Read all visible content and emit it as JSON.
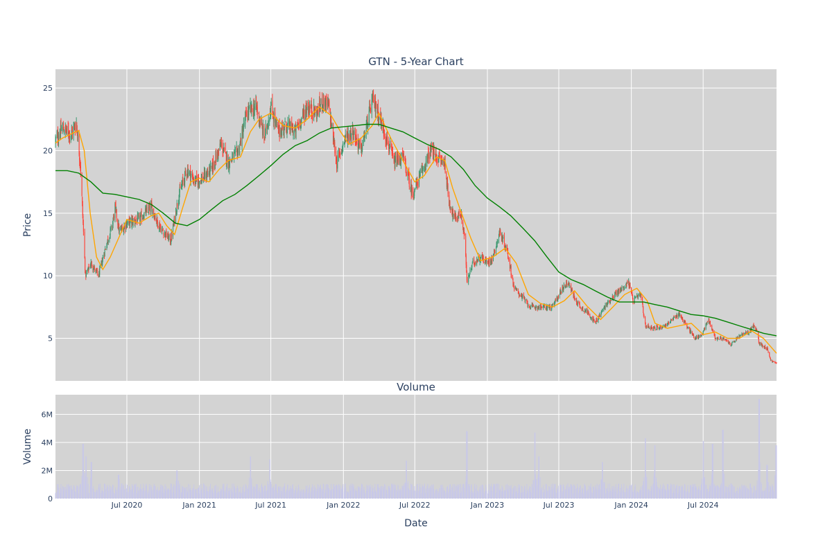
{
  "chart_data": [
    {
      "type": "candlestick",
      "title": "GTN - 5-Year Chart",
      "ylabel": "Price",
      "ylim": [
        1.6,
        26.5
      ],
      "yticks": [
        5,
        10,
        15,
        20,
        25
      ],
      "x_range": [
        "2020-01-02",
        "2025-01-03"
      ],
      "xticks": [
        "2020-07-01",
        "2021-01-01",
        "2021-07-01",
        "2022-01-01",
        "2022-07-01",
        "2023-01-01",
        "2023-07-01",
        "2024-01-01",
        "2024-07-01"
      ],
      "xtick_labels": [
        "Jul 2020",
        "Jan 2021",
        "Jul 2021",
        "Jan 2022",
        "Jul 2022",
        "Jan 2023",
        "Jul 2023",
        "Jan 2024",
        "Jul 2024"
      ],
      "grid": true,
      "colors": {
        "background": "#d3d3d3",
        "increasing": "#3d9970",
        "decreasing": "#ff4136",
        "ma_short": "#ffa500",
        "ma_long": "#008000"
      },
      "close_anchors": [
        [
          "2020-01-02",
          20.8
        ],
        [
          "2020-01-20",
          21.8
        ],
        [
          "2020-02-10",
          21.3
        ],
        [
          "2020-02-24",
          22.2
        ],
        [
          "2020-03-05",
          19.0
        ],
        [
          "2020-03-18",
          10.0
        ],
        [
          "2020-04-01",
          11.0
        ],
        [
          "2020-04-20",
          10.0
        ],
        [
          "2020-05-10",
          12.5
        ],
        [
          "2020-05-25",
          14.0
        ],
        [
          "2020-06-01",
          15.5
        ],
        [
          "2020-06-12",
          13.5
        ],
        [
          "2020-07-01",
          14.2
        ],
        [
          "2020-08-01",
          14.5
        ],
        [
          "2020-09-01",
          15.5
        ],
        [
          "2020-09-20",
          14.0
        ],
        [
          "2020-10-20",
          12.8
        ],
        [
          "2020-11-10",
          16.5
        ],
        [
          "2020-12-01",
          18.5
        ],
        [
          "2020-12-20",
          17.5
        ],
        [
          "2021-01-10",
          17.8
        ],
        [
          "2021-02-01",
          18.5
        ],
        [
          "2021-02-25",
          20.5
        ],
        [
          "2021-03-15",
          19.0
        ],
        [
          "2021-04-10",
          20.0
        ],
        [
          "2021-05-01",
          23.0
        ],
        [
          "2021-05-25",
          23.5
        ],
        [
          "2021-06-15",
          21.0
        ],
        [
          "2021-07-01",
          23.5
        ],
        [
          "2021-07-20",
          21.5
        ],
        [
          "2021-08-10",
          22.0
        ],
        [
          "2021-09-01",
          21.5
        ],
        [
          "2021-10-01",
          23.5
        ],
        [
          "2021-10-25",
          23.0
        ],
        [
          "2021-11-10",
          24.0
        ],
        [
          "2021-11-25",
          23.5
        ],
        [
          "2021-12-15",
          19.0
        ],
        [
          "2022-01-05",
          21.0
        ],
        [
          "2022-01-25",
          21.5
        ],
        [
          "2022-02-15",
          20.0
        ],
        [
          "2022-03-01",
          22.0
        ],
        [
          "2022-03-15",
          24.0
        ],
        [
          "2022-03-25",
          23.5
        ],
        [
          "2022-04-10",
          22.0
        ],
        [
          "2022-05-10",
          19.0
        ],
        [
          "2022-06-01",
          19.5
        ],
        [
          "2022-06-25",
          16.5
        ],
        [
          "2022-07-15",
          18.0
        ],
        [
          "2022-08-10",
          20.0
        ],
        [
          "2022-08-25",
          19.5
        ],
        [
          "2022-09-15",
          19.0
        ],
        [
          "2022-09-25",
          16.0
        ],
        [
          "2022-10-10",
          14.5
        ],
        [
          "2022-10-25",
          15.0
        ],
        [
          "2022-11-05",
          13.0
        ],
        [
          "2022-11-10",
          9.5
        ],
        [
          "2022-11-25",
          11.0
        ],
        [
          "2022-12-15",
          11.5
        ],
        [
          "2023-01-01",
          11.0
        ],
        [
          "2023-01-15",
          11.5
        ],
        [
          "2023-02-01",
          13.5
        ],
        [
          "2023-02-20",
          12.0
        ],
        [
          "2023-03-10",
          9.0
        ],
        [
          "2023-03-25",
          8.5
        ],
        [
          "2023-04-20",
          7.5
        ],
        [
          "2023-05-15",
          7.5
        ],
        [
          "2023-06-15",
          7.5
        ],
        [
          "2023-07-10",
          9.0
        ],
        [
          "2023-07-25",
          9.5
        ],
        [
          "2023-08-10",
          8.2
        ],
        [
          "2023-08-25",
          7.5
        ],
        [
          "2023-09-15",
          7.0
        ],
        [
          "2023-10-01",
          6.2
        ],
        [
          "2023-10-25",
          7.5
        ],
        [
          "2023-11-20",
          8.5
        ],
        [
          "2023-12-10",
          9.0
        ],
        [
          "2023-12-25",
          9.5
        ],
        [
          "2024-01-05",
          8.0
        ],
        [
          "2024-01-25",
          8.5
        ],
        [
          "2024-02-05",
          6.0
        ],
        [
          "2024-03-01",
          5.8
        ],
        [
          "2024-03-25",
          6.0
        ],
        [
          "2024-04-15",
          6.5
        ],
        [
          "2024-05-01",
          7.0
        ],
        [
          "2024-05-20",
          6.0
        ],
        [
          "2024-06-10",
          5.0
        ],
        [
          "2024-06-25",
          5.2
        ],
        [
          "2024-07-15",
          6.5
        ],
        [
          "2024-08-01",
          5.0
        ],
        [
          "2024-08-20",
          5.0
        ],
        [
          "2024-09-10",
          4.5
        ],
        [
          "2024-10-01",
          5.2
        ],
        [
          "2024-10-25",
          5.5
        ],
        [
          "2024-11-05",
          6.0
        ],
        [
          "2024-11-15",
          5.5
        ],
        [
          "2024-11-20",
          4.6
        ],
        [
          "2024-12-10",
          4.2
        ],
        [
          "2024-12-20",
          3.2
        ],
        [
          "2025-01-03",
          3.0
        ]
      ],
      "series": [
        {
          "kind": "ma_short",
          "points": [
            [
              "2020-01-02",
              20.6
            ],
            [
              "2020-01-20",
              21.0
            ],
            [
              "2020-02-15",
              21.4
            ],
            [
              "2020-03-01",
              21.6
            ],
            [
              "2020-03-15",
              20.0
            ],
            [
              "2020-03-30",
              15.0
            ],
            [
              "2020-04-15",
              11.5
            ],
            [
              "2020-05-01",
              10.5
            ],
            [
              "2020-05-20",
              11.5
            ],
            [
              "2020-06-10",
              13.0
            ],
            [
              "2020-07-01",
              14.5
            ],
            [
              "2020-08-01",
              14.2
            ],
            [
              "2020-09-01",
              14.8
            ],
            [
              "2020-09-20",
              15.0
            ],
            [
              "2020-10-10",
              14.0
            ],
            [
              "2020-10-30",
              13.3
            ],
            [
              "2020-11-20",
              15.5
            ],
            [
              "2020-12-10",
              17.5
            ],
            [
              "2021-01-01",
              17.8
            ],
            [
              "2021-01-25",
              17.5
            ],
            [
              "2021-02-20",
              18.5
            ],
            [
              "2021-03-15",
              19.2
            ],
            [
              "2021-04-15",
              19.5
            ],
            [
              "2021-05-10",
              21.5
            ],
            [
              "2021-06-01",
              22.5
            ],
            [
              "2021-07-01",
              23.0
            ],
            [
              "2021-08-01",
              22.0
            ],
            [
              "2021-09-01",
              21.8
            ],
            [
              "2021-10-01",
              22.5
            ],
            [
              "2021-11-01",
              23.5
            ],
            [
              "2021-12-01",
              22.8
            ],
            [
              "2021-12-25",
              21.5
            ],
            [
              "2022-01-15",
              20.5
            ],
            [
              "2022-02-15",
              21.0
            ],
            [
              "2022-03-15",
              22.0
            ],
            [
              "2022-04-01",
              23.0
            ],
            [
              "2022-05-01",
              21.0
            ],
            [
              "2022-06-01",
              19.2
            ],
            [
              "2022-07-01",
              17.5
            ],
            [
              "2022-07-25",
              18.0
            ],
            [
              "2022-08-25",
              19.5
            ],
            [
              "2022-09-15",
              19.2
            ],
            [
              "2022-10-05",
              17.0
            ],
            [
              "2022-10-25",
              15.2
            ],
            [
              "2022-11-20",
              13.0
            ],
            [
              "2022-12-15",
              11.2
            ],
            [
              "2023-01-15",
              11.5
            ],
            [
              "2023-02-15",
              12.2
            ],
            [
              "2023-03-15",
              11.0
            ],
            [
              "2023-04-15",
              8.5
            ],
            [
              "2023-05-15",
              7.8
            ],
            [
              "2023-06-15",
              7.5
            ],
            [
              "2023-07-15",
              8.0
            ],
            [
              "2023-08-10",
              8.8
            ],
            [
              "2023-09-10",
              7.6
            ],
            [
              "2023-10-15",
              6.5
            ],
            [
              "2023-11-15",
              7.5
            ],
            [
              "2023-12-15",
              8.5
            ],
            [
              "2024-01-15",
              9.0
            ],
            [
              "2024-02-10",
              8.0
            ],
            [
              "2024-03-01",
              6.2
            ],
            [
              "2024-04-01",
              5.8
            ],
            [
              "2024-05-01",
              6.0
            ],
            [
              "2024-06-01",
              6.2
            ],
            [
              "2024-07-01",
              5.3
            ],
            [
              "2024-08-01",
              5.5
            ],
            [
              "2024-09-01",
              5.0
            ],
            [
              "2024-10-01",
              5.0
            ],
            [
              "2024-11-01",
              5.6
            ],
            [
              "2024-12-01",
              5.0
            ],
            [
              "2025-01-03",
              3.8
            ]
          ]
        },
        {
          "kind": "ma_long",
          "points": [
            [
              "2020-01-02",
              18.4
            ],
            [
              "2020-02-01",
              18.4
            ],
            [
              "2020-03-01",
              18.2
            ],
            [
              "2020-04-01",
              17.5
            ],
            [
              "2020-05-01",
              16.6
            ],
            [
              "2020-06-01",
              16.5
            ],
            [
              "2020-07-01",
              16.3
            ],
            [
              "2020-08-01",
              16.1
            ],
            [
              "2020-09-01",
              15.7
            ],
            [
              "2020-10-01",
              15.0
            ],
            [
              "2020-11-01",
              14.2
            ],
            [
              "2020-12-01",
              14.0
            ],
            [
              "2021-01-01",
              14.5
            ],
            [
              "2021-02-01",
              15.3
            ],
            [
              "2021-03-01",
              16.0
            ],
            [
              "2021-04-01",
              16.5
            ],
            [
              "2021-05-01",
              17.2
            ],
            [
              "2021-06-01",
              18.0
            ],
            [
              "2021-07-01",
              18.8
            ],
            [
              "2021-08-01",
              19.7
            ],
            [
              "2021-09-01",
              20.4
            ],
            [
              "2021-10-01",
              20.8
            ],
            [
              "2021-11-01",
              21.4
            ],
            [
              "2021-12-01",
              21.8
            ],
            [
              "2022-01-01",
              21.9
            ],
            [
              "2022-02-01",
              22.0
            ],
            [
              "2022-03-01",
              22.1
            ],
            [
              "2022-04-01",
              22.1
            ],
            [
              "2022-05-01",
              21.8
            ],
            [
              "2022-06-01",
              21.5
            ],
            [
              "2022-07-01",
              21.0
            ],
            [
              "2022-08-01",
              20.5
            ],
            [
              "2022-09-01",
              20.1
            ],
            [
              "2022-10-01",
              19.5
            ],
            [
              "2022-11-01",
              18.5
            ],
            [
              "2022-12-01",
              17.2
            ],
            [
              "2023-01-01",
              16.2
            ],
            [
              "2023-02-01",
              15.5
            ],
            [
              "2023-03-01",
              14.8
            ],
            [
              "2023-04-01",
              13.8
            ],
            [
              "2023-05-01",
              12.8
            ],
            [
              "2023-06-01",
              11.5
            ],
            [
              "2023-07-01",
              10.3
            ],
            [
              "2023-08-01",
              9.7
            ],
            [
              "2023-09-01",
              9.3
            ],
            [
              "2023-10-01",
              8.8
            ],
            [
              "2023-11-01",
              8.3
            ],
            [
              "2023-12-01",
              7.9
            ],
            [
              "2024-01-01",
              7.9
            ],
            [
              "2024-02-01",
              7.9
            ],
            [
              "2024-03-01",
              7.7
            ],
            [
              "2024-04-01",
              7.5
            ],
            [
              "2024-05-01",
              7.2
            ],
            [
              "2024-06-01",
              6.9
            ],
            [
              "2024-07-01",
              6.8
            ],
            [
              "2024-08-01",
              6.6
            ],
            [
              "2024-09-01",
              6.3
            ],
            [
              "2024-10-01",
              6.0
            ],
            [
              "2024-11-01",
              5.7
            ],
            [
              "2024-12-01",
              5.4
            ],
            [
              "2025-01-03",
              5.2
            ]
          ]
        }
      ]
    },
    {
      "type": "bar",
      "title": "Volume",
      "xlabel": "Date",
      "ylabel": "Volume",
      "ylim": [
        0,
        7400000
      ],
      "yticks": [
        0,
        2000000,
        4000000,
        6000000
      ],
      "ytick_labels": [
        "0",
        "2M",
        "4M",
        "6M"
      ],
      "xticks": [
        "2020-07-01",
        "2021-01-01",
        "2021-07-01",
        "2022-01-01",
        "2022-07-01",
        "2023-01-01",
        "2023-07-01",
        "2024-01-01",
        "2024-07-01"
      ],
      "xtick_labels": [
        "Jul 2020",
        "Jan 2021",
        "Jul 2021",
        "Jan 2022",
        "Jul 2022",
        "Jan 2023",
        "Jul 2023",
        "Jan 2024",
        "Jul 2024"
      ],
      "colors": {
        "bar": "#c8c8e8",
        "background": "#d3d3d3"
      },
      "volume_spikes": [
        [
          "2020-03-12",
          3900000
        ],
        [
          "2020-03-20",
          3000000
        ],
        [
          "2020-04-02",
          2600000
        ],
        [
          "2020-06-10",
          1700000
        ],
        [
          "2020-11-05",
          2000000
        ],
        [
          "2021-05-10",
          3000000
        ],
        [
          "2021-06-28",
          2800000
        ],
        [
          "2022-06-10",
          2700000
        ],
        [
          "2022-11-10",
          4800000
        ],
        [
          "2023-05-01",
          4700000
        ],
        [
          "2023-05-12",
          3000000
        ],
        [
          "2023-10-20",
          2600000
        ],
        [
          "2024-02-05",
          4300000
        ],
        [
          "2024-03-01",
          3800000
        ],
        [
          "2024-07-01",
          4100000
        ],
        [
          "2024-07-25",
          3900000
        ],
        [
          "2024-08-20",
          4900000
        ],
        [
          "2024-11-20",
          7100000
        ],
        [
          "2024-12-10",
          2400000
        ],
        [
          "2025-01-02",
          3800000
        ]
      ],
      "baseline_volume": 800000
    }
  ]
}
